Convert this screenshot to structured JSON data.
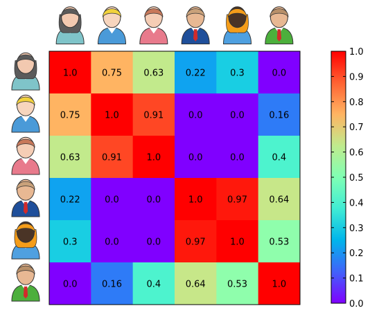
{
  "chart_data": {
    "type": "heatmap",
    "title": "",
    "xlabel": "",
    "ylabel": "",
    "row_icons": [
      "woman-dark-hair-icon",
      "boy-blond-hair-icon",
      "girl-auburn-hair-icon",
      "man-suit-icon",
      "woman-long-hair-icon",
      "man-green-shirt-icon"
    ],
    "col_icons": [
      "woman-dark-hair-icon",
      "boy-blond-hair-icon",
      "girl-auburn-hair-icon",
      "man-suit-icon",
      "woman-long-hair-icon",
      "man-green-shirt-icon"
    ],
    "values": [
      [
        1.0,
        0.75,
        0.63,
        0.22,
        0.3,
        0.0
      ],
      [
        0.75,
        1.0,
        0.91,
        0.0,
        0.0,
        0.16
      ],
      [
        0.63,
        0.91,
        1.0,
        0.0,
        0.0,
        0.4
      ],
      [
        0.22,
        0.0,
        0.0,
        1.0,
        0.97,
        0.64
      ],
      [
        0.3,
        0.0,
        0.0,
        0.97,
        1.0,
        0.53
      ],
      [
        0.0,
        0.16,
        0.4,
        0.64,
        0.53,
        1.0
      ]
    ],
    "value_labels": [
      [
        "1.0",
        "0.75",
        "0.63",
        "0.22",
        "0.3",
        "0.0"
      ],
      [
        "0.75",
        "1.0",
        "0.91",
        "0.0",
        "0.0",
        "0.16"
      ],
      [
        "0.63",
        "0.91",
        "1.0",
        "0.0",
        "0.0",
        "0.4"
      ],
      [
        "0.22",
        "0.0",
        "0.0",
        "1.0",
        "0.97",
        "0.64"
      ],
      [
        "0.3",
        "0.0",
        "0.0",
        "0.97",
        "1.0",
        "0.53"
      ],
      [
        "0.0",
        "0.16",
        "0.4",
        "0.64",
        "0.53",
        "1.0"
      ]
    ],
    "colormap": "rainbow",
    "vlim": [
      0.0,
      1.0
    ],
    "colorbar_ticks": [
      "0.0",
      "0.1",
      "0.2",
      "0.3",
      "0.4",
      "0.5",
      "0.6",
      "0.7",
      "0.8",
      "0.9",
      "1.0"
    ],
    "grid": false,
    "legend": "colorbar-right"
  }
}
